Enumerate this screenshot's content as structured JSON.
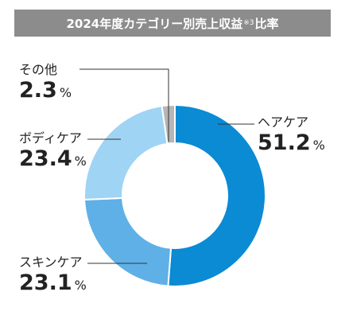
{
  "title": {
    "main": "2024年度カテゴリー別売上収益",
    "note": "※3",
    "suffix": "比率"
  },
  "chart_data": {
    "type": "pie",
    "hole": true,
    "title": "2024年度カテゴリー別売上収益※3比率",
    "unit": "%",
    "slices": [
      {
        "name": "ヘアケア",
        "value": 51.2,
        "display": "51.2",
        "color": "#0a8bd4"
      },
      {
        "name": "スキンケア",
        "value": 23.1,
        "display": "23.1",
        "color": "#5fb0e6"
      },
      {
        "name": "ボディケア",
        "value": 23.4,
        "display": "23.4",
        "color": "#9fd4f4"
      },
      {
        "name": "その他",
        "value": 2.3,
        "display": "2.3",
        "color": "#b6b6b6"
      }
    ]
  }
}
